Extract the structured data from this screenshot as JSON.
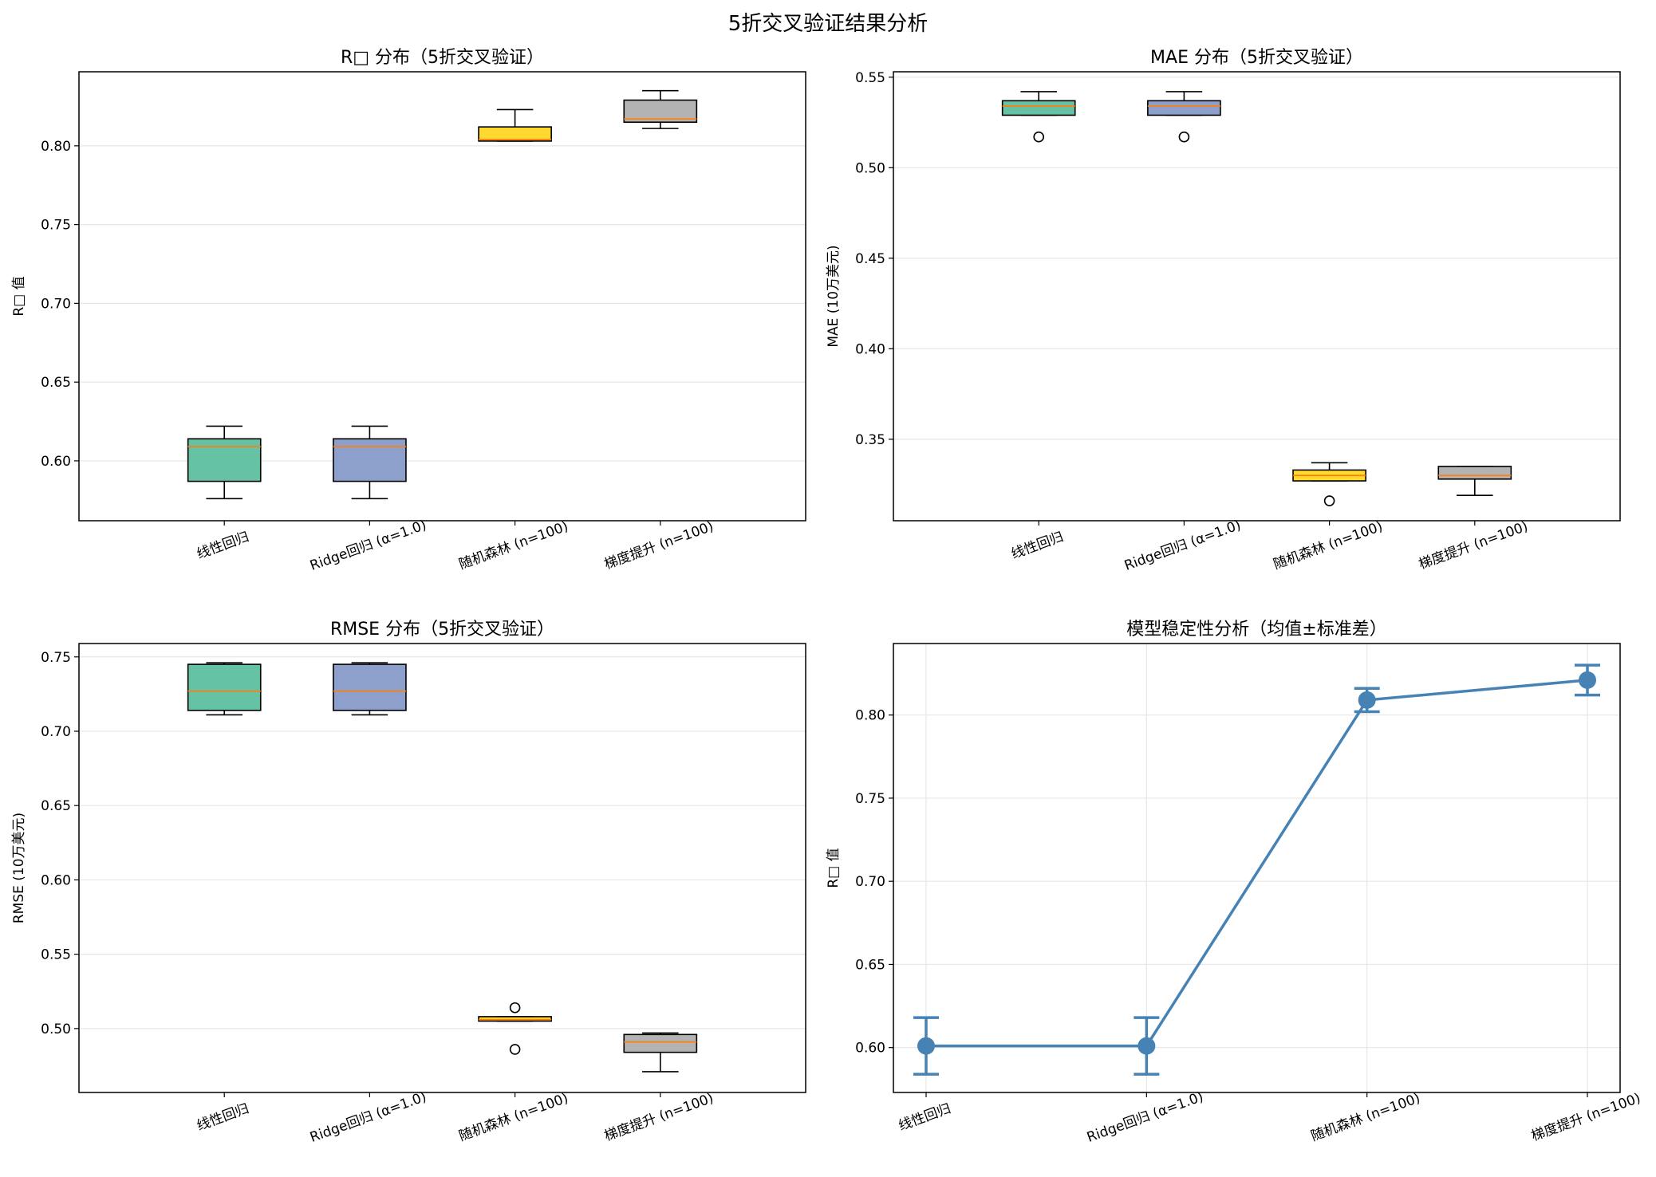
{
  "figure": {
    "suptitle": "5折交叉验证结果分析"
  },
  "chart_data": [
    {
      "type": "box",
      "title": "R□ 分布（5折交叉验证）",
      "xlabel": "",
      "ylabel": "R□ 值",
      "ylim": [
        0.562,
        0.847
      ],
      "yticks": [
        0.6,
        0.65,
        0.7,
        0.75,
        0.8
      ],
      "ytick_labels": [
        "0.60",
        "0.65",
        "0.70",
        "0.75",
        "0.80"
      ],
      "grid": "y",
      "categories": [
        "线性回归",
        "Ridge回归 (α=1.0)",
        "随机森林 (n=100)",
        "梯度提升 (n=100)"
      ],
      "colors": [
        "#66c2a5",
        "#8da0cb",
        "#ffd92f",
        "#b3b3b3"
      ],
      "boxes": [
        {
          "min": 0.576,
          "q1": 0.587,
          "median": 0.609,
          "q3": 0.614,
          "max": 0.622,
          "outliers": []
        },
        {
          "min": 0.576,
          "q1": 0.587,
          "median": 0.609,
          "q3": 0.614,
          "max": 0.622,
          "outliers": []
        },
        {
          "min": 0.803,
          "q1": 0.803,
          "median": 0.804,
          "q3": 0.812,
          "max": 0.823,
          "outliers": []
        },
        {
          "min": 0.811,
          "q1": 0.815,
          "median": 0.817,
          "q3": 0.829,
          "max": 0.835,
          "outliers": []
        }
      ]
    },
    {
      "type": "box",
      "title": "MAE 分布（5折交叉验证）",
      "xlabel": "",
      "ylabel": "MAE (10万美元)",
      "ylim": [
        0.305,
        0.553
      ],
      "yticks": [
        0.35,
        0.4,
        0.45,
        0.5,
        0.55
      ],
      "ytick_labels": [
        "0.35",
        "0.40",
        "0.45",
        "0.50",
        "0.55"
      ],
      "grid": "y",
      "categories": [
        "线性回归",
        "Ridge回归 (α=1.0)",
        "随机森林 (n=100)",
        "梯度提升 (n=100)"
      ],
      "colors": [
        "#66c2a5",
        "#8da0cb",
        "#ffd92f",
        "#b3b3b3"
      ],
      "boxes": [
        {
          "min": 0.529,
          "q1": 0.529,
          "median": 0.534,
          "q3": 0.537,
          "max": 0.542,
          "outliers": [
            0.517
          ]
        },
        {
          "min": 0.529,
          "q1": 0.529,
          "median": 0.534,
          "q3": 0.537,
          "max": 0.542,
          "outliers": [
            0.517
          ]
        },
        {
          "min": 0.327,
          "q1": 0.327,
          "median": 0.33,
          "q3": 0.333,
          "max": 0.337,
          "outliers": [
            0.316
          ]
        },
        {
          "min": 0.319,
          "q1": 0.328,
          "median": 0.33,
          "q3": 0.335,
          "max": 0.335,
          "outliers": []
        }
      ]
    },
    {
      "type": "box",
      "title": "RMSE 分布（5折交叉验证）",
      "xlabel": "",
      "ylabel": "RMSE (10万美元)",
      "ylim": [
        0.457,
        0.759
      ],
      "yticks": [
        0.5,
        0.55,
        0.6,
        0.65,
        0.7,
        0.75
      ],
      "ytick_labels": [
        "0.50",
        "0.55",
        "0.60",
        "0.65",
        "0.70",
        "0.75"
      ],
      "grid": "y",
      "categories": [
        "线性回归",
        "Ridge回归 (α=1.0)",
        "随机森林 (n=100)",
        "梯度提升 (n=100)"
      ],
      "colors": [
        "#66c2a5",
        "#8da0cb",
        "#ffd92f",
        "#b3b3b3"
      ],
      "boxes": [
        {
          "min": 0.711,
          "q1": 0.714,
          "median": 0.727,
          "q3": 0.745,
          "max": 0.746,
          "outliers": []
        },
        {
          "min": 0.711,
          "q1": 0.714,
          "median": 0.727,
          "q3": 0.745,
          "max": 0.746,
          "outliers": []
        },
        {
          "min": 0.505,
          "q1": 0.505,
          "median": 0.506,
          "q3": 0.508,
          "max": 0.508,
          "outliers": [
            0.514,
            0.486
          ]
        },
        {
          "min": 0.471,
          "q1": 0.484,
          "median": 0.491,
          "q3": 0.496,
          "max": 0.497,
          "outliers": []
        }
      ]
    },
    {
      "type": "errorbar",
      "title": "模型稳定性分析（均值±标准差）",
      "xlabel": "",
      "ylabel": "R□ 值",
      "ylim": [
        0.573,
        0.843
      ],
      "yticks": [
        0.6,
        0.65,
        0.7,
        0.75,
        0.8
      ],
      "ytick_labels": [
        "0.60",
        "0.65",
        "0.70",
        "0.75",
        "0.80"
      ],
      "grid": "both",
      "color": "#4682b4",
      "categories": [
        "线性回归",
        "Ridge回归 (α=1.0)",
        "随机森林 (n=100)",
        "梯度提升 (n=100)"
      ],
      "series": [
        {
          "mean": [
            0.601,
            0.601,
            0.809,
            0.821
          ],
          "std": [
            0.017,
            0.017,
            0.007,
            0.009
          ]
        }
      ]
    }
  ]
}
